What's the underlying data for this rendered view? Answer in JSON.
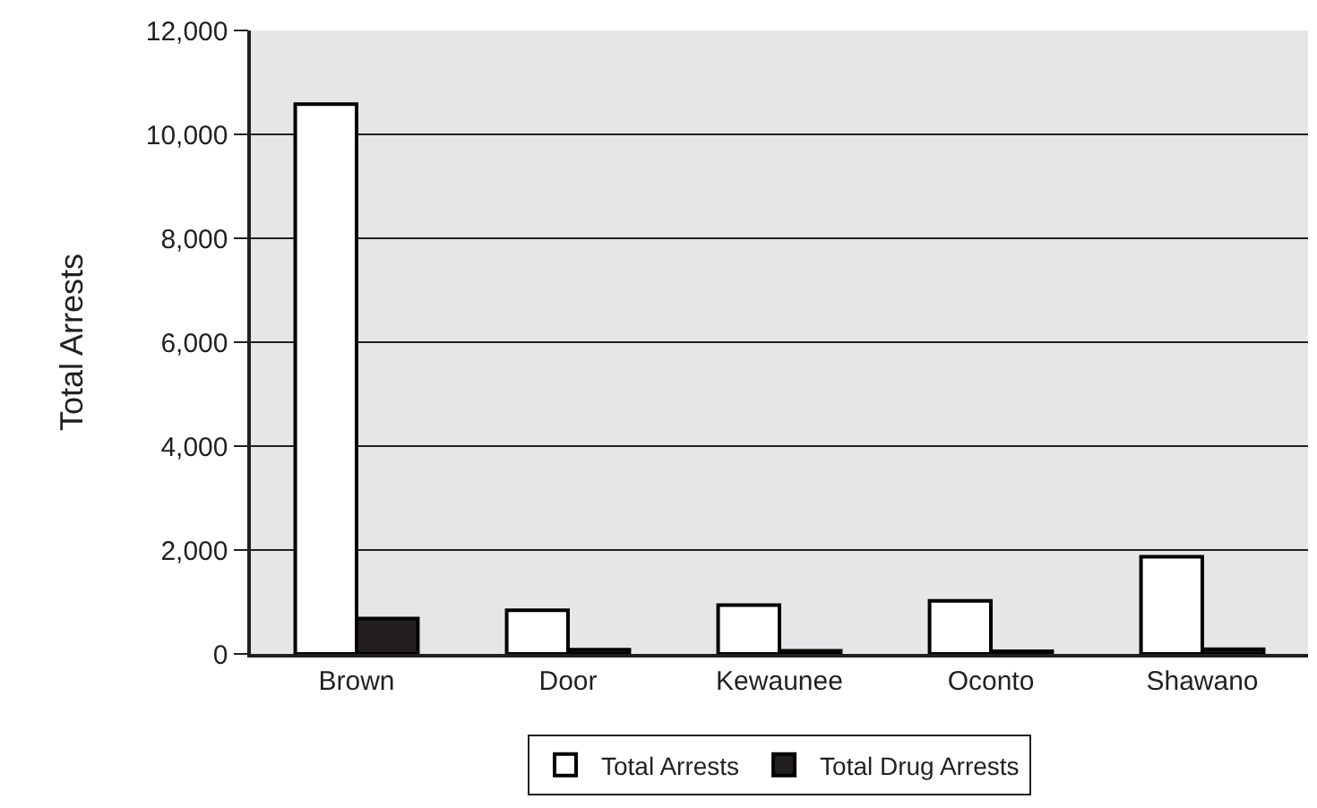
{
  "chart_data": {
    "type": "bar",
    "ylabel": "Total Arrests",
    "categories": [
      "Brown",
      "Door",
      "Kewaunee",
      "Oconto",
      "Shawano"
    ],
    "series": [
      {
        "name": "Total Arrests",
        "color": "#ffffff",
        "values": [
          10580,
          840,
          940,
          1020,
          1870
        ]
      },
      {
        "name": "Total Drug Arrests",
        "color": "#231f20",
        "values": [
          680,
          80,
          60,
          50,
          90
        ]
      }
    ],
    "ylim": [
      0,
      12000
    ],
    "yticks": [
      {
        "value": 0,
        "label": "0"
      },
      {
        "value": 2000,
        "label": "2,000"
      },
      {
        "value": 4000,
        "label": "4,000"
      },
      {
        "value": 6000,
        "label": "6,000"
      },
      {
        "value": 8000,
        "label": "8,000"
      },
      {
        "value": 10000,
        "label": "10,000"
      },
      {
        "value": 12000,
        "label": "12,000"
      }
    ],
    "grid": "y",
    "legend": "bottom"
  }
}
